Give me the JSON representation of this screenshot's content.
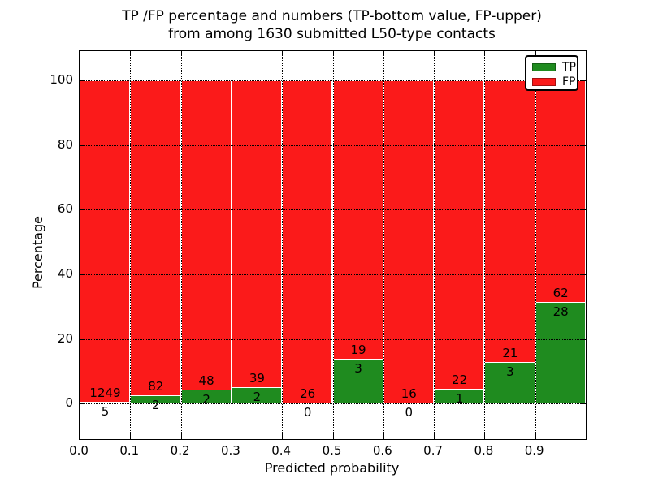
{
  "chart_data": {
    "type": "bar",
    "stacked": true,
    "normalized": "percent",
    "title_line1": "TP /FP percentage and numbers (TP-bottom value, FP-upper)",
    "title_line2": "from among 1630 submitted L50-type contacts",
    "xlabel": "Predicted probability",
    "ylabel": "Percentage",
    "categories": [
      "0.0-0.1",
      "0.1-0.2",
      "0.2-0.3",
      "0.3-0.4",
      "0.4-0.5",
      "0.5-0.6",
      "0.6-0.7",
      "0.7-0.8",
      "0.8-0.9",
      "0.9-1.0"
    ],
    "x_tick_labels": [
      "0.0",
      "0.1",
      "0.2",
      "0.3",
      "0.4",
      "0.5",
      "0.6",
      "0.7",
      "0.8",
      "0.9"
    ],
    "y_tick_labels": [
      "0",
      "20",
      "40",
      "60",
      "80",
      "100"
    ],
    "y_ticks": [
      0,
      20,
      40,
      60,
      80,
      100
    ],
    "xlim": [
      0.0,
      1.0
    ],
    "ylim": [
      -11,
      109
    ],
    "grid": "dotted",
    "legend_position": "upper right",
    "series": [
      {
        "name": "TP",
        "color": "#1f8b1f",
        "edge_color": "#14691 4",
        "values": [
          5,
          2,
          2,
          2,
          0,
          3,
          0,
          1,
          3,
          28
        ]
      },
      {
        "name": "FP",
        "color": "#fb1a1a",
        "edge_color": "#b31212",
        "values": [
          1249,
          82,
          48,
          39,
          26,
          19,
          16,
          22,
          21,
          62
        ]
      }
    ],
    "total_contacts": "1630",
    "bar_segment_note": "TP percent = TP/(TP+FP)*100; bars stacked to 100%"
  },
  "colors": {
    "tp_green": "#1f8b1f",
    "fp_red": "#fb1a1a",
    "axis_black": "#000000",
    "background": "#ffffff"
  }
}
